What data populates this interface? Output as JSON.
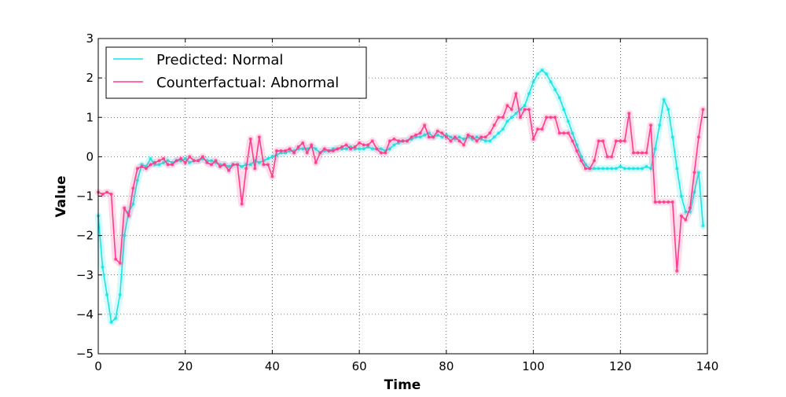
{
  "chart_data": {
    "type": "line",
    "xlabel": "Time",
    "ylabel": "Value",
    "xlim": [
      0,
      140
    ],
    "ylim": [
      -5,
      3
    ],
    "x_ticks": [
      0,
      20,
      40,
      60,
      80,
      100,
      120,
      140
    ],
    "y_ticks": [
      -5,
      -4,
      -3,
      -2,
      -1,
      0,
      1,
      2,
      3
    ],
    "x_tick_labels": [
      "0",
      "20",
      "40",
      "60",
      "80",
      "100",
      "120",
      "140"
    ],
    "y_tick_labels": [
      "−5",
      "−4",
      "−3",
      "−2",
      "−1",
      "0",
      "1",
      "2",
      "3"
    ],
    "grid": true,
    "legend_position": "top-left",
    "series": [
      {
        "name": "Predicted: Normal",
        "color": "#19e6e6",
        "x": [
          0,
          1,
          2,
          3,
          4,
          5,
          6,
          7,
          8,
          9,
          10,
          11,
          12,
          13,
          14,
          15,
          16,
          17,
          18,
          19,
          20,
          21,
          22,
          23,
          24,
          25,
          26,
          27,
          28,
          29,
          30,
          31,
          32,
          33,
          34,
          35,
          36,
          37,
          38,
          39,
          40,
          41,
          42,
          43,
          44,
          45,
          46,
          47,
          48,
          49,
          50,
          51,
          52,
          53,
          54,
          55,
          56,
          57,
          58,
          59,
          60,
          61,
          62,
          63,
          64,
          65,
          66,
          67,
          68,
          69,
          70,
          71,
          72,
          73,
          74,
          75,
          76,
          77,
          78,
          79,
          80,
          81,
          82,
          83,
          84,
          85,
          86,
          87,
          88,
          89,
          90,
          91,
          92,
          93,
          94,
          95,
          96,
          97,
          98,
          99,
          100,
          101,
          102,
          103,
          104,
          105,
          106,
          107,
          108,
          109,
          110,
          111,
          112,
          113,
          114,
          115,
          116,
          117,
          118,
          119,
          120,
          121,
          122,
          123,
          124,
          125,
          126,
          127,
          128,
          129,
          130,
          131,
          132,
          133,
          134,
          135,
          136,
          137,
          138,
          139
        ],
        "y": [
          -1.5,
          -2.8,
          -3.5,
          -4.2,
          -4.1,
          -3.5,
          -2.0,
          -1.4,
          -1.2,
          -0.6,
          -0.2,
          -0.25,
          -0.05,
          -0.2,
          -0.2,
          -0.15,
          -0.1,
          -0.15,
          -0.1,
          -0.1,
          -0.05,
          -0.15,
          -0.1,
          -0.1,
          -0.05,
          -0.1,
          -0.1,
          -0.15,
          -0.2,
          -0.2,
          -0.25,
          -0.2,
          -0.2,
          -0.25,
          -0.2,
          -0.2,
          -0.1,
          -0.15,
          -0.1,
          -0.05,
          0.0,
          0.05,
          0.1,
          0.1,
          0.15,
          0.15,
          0.2,
          0.2,
          0.2,
          0.25,
          0.2,
          0.1,
          0.15,
          0.15,
          0.2,
          0.2,
          0.2,
          0.2,
          0.25,
          0.2,
          0.2,
          0.2,
          0.25,
          0.2,
          0.2,
          0.2,
          0.15,
          0.2,
          0.3,
          0.35,
          0.4,
          0.4,
          0.45,
          0.5,
          0.5,
          0.55,
          0.6,
          0.5,
          0.55,
          0.5,
          0.55,
          0.5,
          0.45,
          0.5,
          0.45,
          0.5,
          0.45,
          0.5,
          0.45,
          0.4,
          0.4,
          0.5,
          0.6,
          0.7,
          0.9,
          1.0,
          1.1,
          1.2,
          1.3,
          1.6,
          1.9,
          2.1,
          2.2,
          2.1,
          1.9,
          1.7,
          1.5,
          1.2,
          0.9,
          0.6,
          0.3,
          0.0,
          -0.2,
          -0.3,
          -0.3,
          -0.3,
          -0.3,
          -0.3,
          -0.3,
          -0.3,
          -0.25,
          -0.3,
          -0.3,
          -0.3,
          -0.3,
          -0.3,
          -0.25,
          -0.3,
          0.2,
          0.8,
          1.45,
          1.2,
          0.5,
          -0.3,
          -1.0,
          -1.4,
          -1.4,
          -0.9,
          -0.4,
          -1.75
        ]
      },
      {
        "name": "Counterfactual: Abnormal",
        "color": "#ff3c8c",
        "x": [
          0,
          1,
          2,
          3,
          4,
          5,
          6,
          7,
          8,
          9,
          10,
          11,
          12,
          13,
          14,
          15,
          16,
          17,
          18,
          19,
          20,
          21,
          22,
          23,
          24,
          25,
          26,
          27,
          28,
          29,
          30,
          31,
          32,
          33,
          34,
          35,
          36,
          37,
          38,
          39,
          40,
          41,
          42,
          43,
          44,
          45,
          46,
          47,
          48,
          49,
          50,
          51,
          52,
          53,
          54,
          55,
          56,
          57,
          58,
          59,
          60,
          61,
          62,
          63,
          64,
          65,
          66,
          67,
          68,
          69,
          70,
          71,
          72,
          73,
          74,
          75,
          76,
          77,
          78,
          79,
          80,
          81,
          82,
          83,
          84,
          85,
          86,
          87,
          88,
          89,
          90,
          91,
          92,
          93,
          94,
          95,
          96,
          97,
          98,
          99,
          100,
          101,
          102,
          103,
          104,
          105,
          106,
          107,
          108,
          109,
          110,
          111,
          112,
          113,
          114,
          115,
          116,
          117,
          118,
          119,
          120,
          121,
          122,
          123,
          124,
          125,
          126,
          127,
          128,
          129,
          130,
          131,
          132,
          133,
          134,
          135,
          136,
          137,
          138,
          139
        ],
        "y": [
          -0.9,
          -0.95,
          -0.9,
          -0.95,
          -2.6,
          -2.7,
          -1.3,
          -1.5,
          -0.8,
          -0.3,
          -0.25,
          -0.3,
          -0.2,
          -0.15,
          -0.1,
          -0.05,
          -0.2,
          -0.2,
          -0.1,
          -0.05,
          -0.15,
          0.0,
          -0.1,
          -0.1,
          0.0,
          -0.15,
          -0.2,
          -0.1,
          -0.25,
          -0.2,
          -0.35,
          -0.2,
          -0.2,
          -1.2,
          -0.3,
          0.45,
          -0.3,
          0.5,
          -0.2,
          -0.2,
          -0.5,
          0.15,
          0.15,
          0.15,
          0.2,
          0.1,
          0.25,
          0.35,
          0.1,
          0.3,
          -0.15,
          0.1,
          0.2,
          0.15,
          0.15,
          0.2,
          0.25,
          0.3,
          0.2,
          0.25,
          0.35,
          0.3,
          0.3,
          0.4,
          0.2,
          0.1,
          0.1,
          0.4,
          0.45,
          0.4,
          0.4,
          0.4,
          0.5,
          0.55,
          0.6,
          0.8,
          0.5,
          0.5,
          0.65,
          0.6,
          0.5,
          0.4,
          0.5,
          0.4,
          0.3,
          0.55,
          0.5,
          0.4,
          0.5,
          0.5,
          0.6,
          0.8,
          1.0,
          1.0,
          1.3,
          1.2,
          1.6,
          1.0,
          1.2,
          1.2,
          0.45,
          0.7,
          0.7,
          1.0,
          1.0,
          1.0,
          0.6,
          0.6,
          0.6,
          0.4,
          0.15,
          -0.1,
          -0.3,
          -0.3,
          -0.1,
          0.4,
          0.4,
          0.0,
          0.0,
          0.4,
          0.4,
          0.4,
          1.1,
          0.1,
          0.1,
          0.1,
          0.1,
          0.8,
          -1.15,
          -1.15,
          -1.15,
          -1.15,
          -1.15,
          -2.9,
          -1.5,
          -1.6,
          -1.3,
          -0.4,
          0.5,
          1.2
        ]
      }
    ]
  }
}
